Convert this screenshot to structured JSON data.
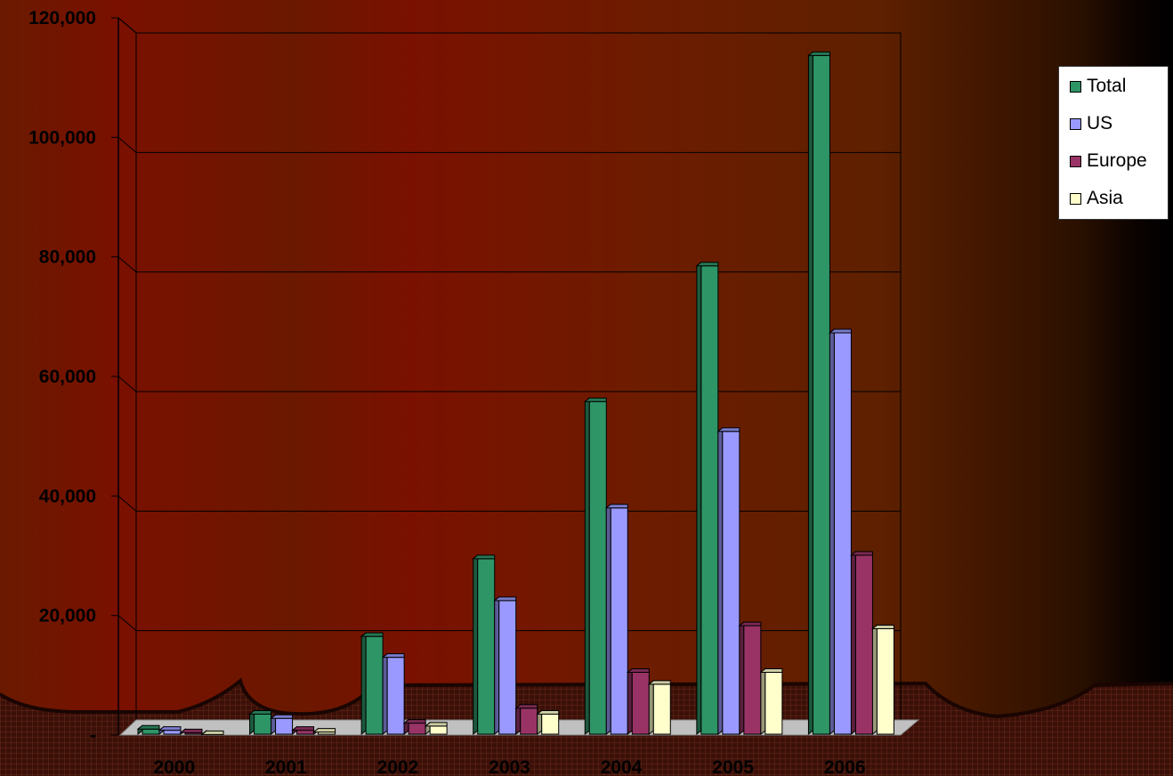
{
  "chart_data": {
    "type": "bar",
    "title": "",
    "xlabel": "",
    "ylabel": "",
    "categories": [
      "2000",
      "2001",
      "2002",
      "2003",
      "2004",
      "2005",
      "2006"
    ],
    "series": [
      {
        "name": "Total",
        "color": "#2e9566",
        "values": [
          1000,
          3500,
          16500,
          29500,
          55800,
          78500,
          113700
        ]
      },
      {
        "name": "US",
        "color": "#9999ff",
        "values": [
          800,
          2800,
          13000,
          22500,
          38000,
          50800,
          67300
        ]
      },
      {
        "name": "Europe",
        "color": "#993366",
        "values": [
          400,
          800,
          2000,
          4500,
          10500,
          18300,
          30100
        ]
      },
      {
        "name": "Asia",
        "color": "#ffffcc",
        "values": [
          100,
          500,
          1500,
          3500,
          8500,
          10500,
          17800
        ]
      }
    ],
    "yticks": [
      "-",
      "20,000",
      "40,000",
      "60,000",
      "80,000",
      "100,000",
      "120,000"
    ],
    "ylim": [
      0,
      120000
    ],
    "grid": true,
    "legend_position": "right"
  }
}
